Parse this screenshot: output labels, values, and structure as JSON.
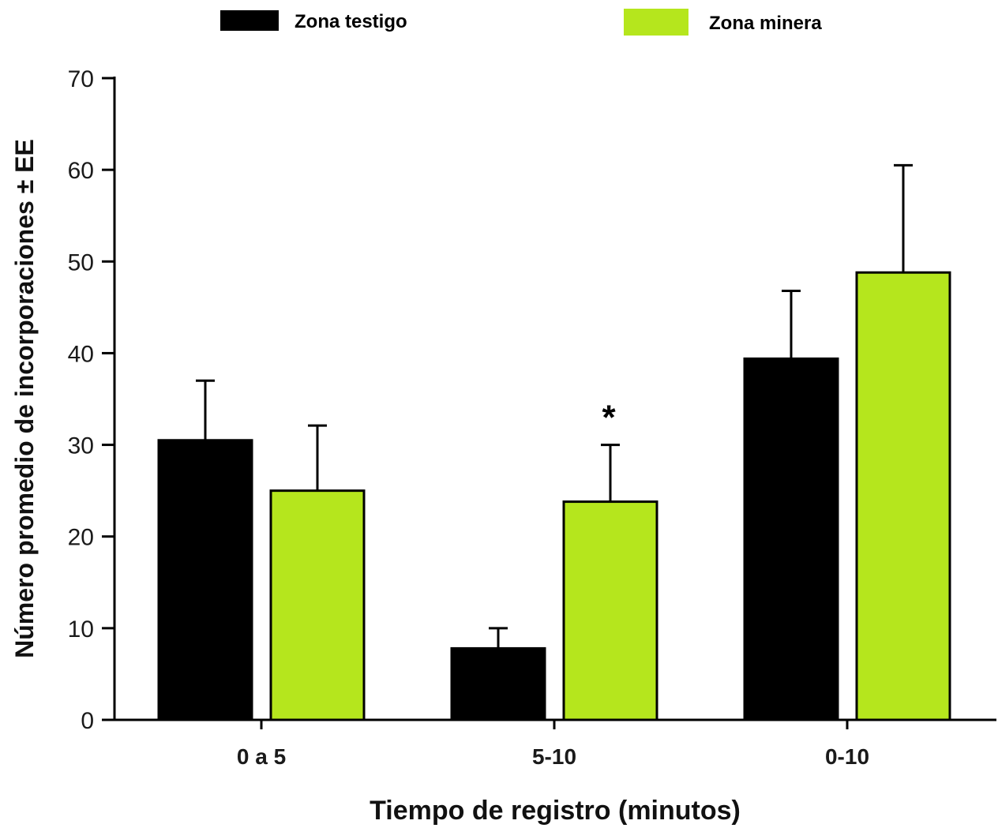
{
  "chart_data": {
    "type": "bar",
    "title": "",
    "xlabel": "Tiempo de registro (minutos)",
    "ylabel": "Número promedio de incorporaciones ± EE",
    "ylim": [
      0,
      70
    ],
    "yticks": [
      "0",
      "10",
      "20",
      "30",
      "40",
      "50",
      "60",
      "70"
    ],
    "categories": [
      "0 a 5",
      "5-10",
      "0-10"
    ],
    "series": [
      {
        "name": "Zona testigo",
        "color": "#000000",
        "values": [
          30.5,
          7.8,
          39.4
        ],
        "errors": [
          6.5,
          2.2,
          7.4
        ]
      },
      {
        "name": "Zona minera",
        "color": "#b5e61d",
        "values": [
          25.0,
          23.8,
          48.8
        ],
        "errors": [
          7.1,
          6.2,
          11.7
        ]
      }
    ],
    "annotations": [
      {
        "category": "5-10",
        "series": "Zona minera",
        "text": "*"
      }
    ],
    "legend_position": "top",
    "grid": false
  }
}
